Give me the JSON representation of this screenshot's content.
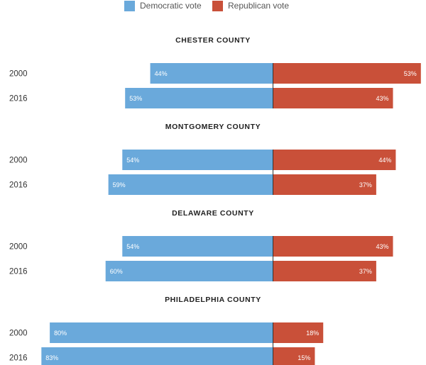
{
  "legend": [
    {
      "label": "Democratic vote",
      "color": "#6aa9db"
    },
    {
      "label": "Republican vote",
      "color": "#c95039"
    }
  ],
  "chart_data": {
    "type": "bar",
    "orientation": "diverging-horizontal",
    "xlim": [
      -100,
      100
    ],
    "grid": false,
    "legend_position": "top",
    "colors": {
      "democratic": "#6aa9db",
      "republican": "#c95039"
    },
    "panels": [
      {
        "title": "CHESTER COUNTY",
        "categories": [
          "2000",
          "2016"
        ],
        "series": [
          {
            "name": "Democratic vote",
            "values": [
              44,
              53
            ],
            "labels": [
              "44%",
              "53%"
            ]
          },
          {
            "name": "Republican vote",
            "values": [
              53,
              43
            ],
            "labels": [
              "53%",
              "43%"
            ]
          }
        ]
      },
      {
        "title": "MONTGOMERY COUNTY",
        "categories": [
          "2000",
          "2016"
        ],
        "series": [
          {
            "name": "Democratic vote",
            "values": [
              54,
              59
            ],
            "labels": [
              "54%",
              "59%"
            ]
          },
          {
            "name": "Republican vote",
            "values": [
              44,
              37
            ],
            "labels": [
              "44%",
              "37%"
            ]
          }
        ]
      },
      {
        "title": "DELAWARE COUNTY",
        "categories": [
          "2000",
          "2016"
        ],
        "series": [
          {
            "name": "Democratic vote",
            "values": [
              54,
              60
            ],
            "labels": [
              "54%",
              "60%"
            ]
          },
          {
            "name": "Republican vote",
            "values": [
              43,
              37
            ],
            "labels": [
              "43%",
              "37%"
            ]
          }
        ]
      },
      {
        "title": "PHILADELPHIA COUNTY",
        "categories": [
          "2000",
          "2016"
        ],
        "series": [
          {
            "name": "Democratic vote",
            "values": [
              80,
              83
            ],
            "labels": [
              "80%",
              "83%"
            ]
          },
          {
            "name": "Republican vote",
            "values": [
              18,
              15
            ],
            "labels": [
              "18%",
              "15%"
            ]
          }
        ]
      }
    ]
  }
}
